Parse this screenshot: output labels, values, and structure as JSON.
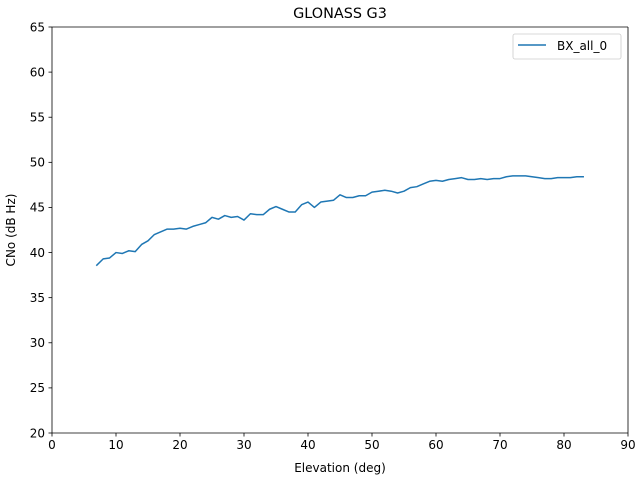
{
  "chart_data": {
    "type": "line",
    "title": "GLONASS G3",
    "xlabel": "Elevation (deg)",
    "ylabel": "CNo (dB Hz)",
    "xlim": [
      0,
      90
    ],
    "ylim": [
      20,
      65
    ],
    "xticks": [
      0,
      10,
      20,
      30,
      40,
      50,
      60,
      70,
      80,
      90
    ],
    "yticks": [
      20,
      25,
      30,
      35,
      40,
      45,
      50,
      55,
      60,
      65
    ],
    "grid": false,
    "legend_position": "top-right",
    "series": [
      {
        "name": "BX_all_0",
        "color": "#1f77b4",
        "x": [
          7,
          8,
          9,
          10,
          11,
          12,
          13,
          14,
          15,
          16,
          17,
          18,
          19,
          20,
          21,
          22,
          23,
          24,
          25,
          26,
          27,
          28,
          29,
          30,
          31,
          32,
          33,
          34,
          35,
          36,
          37,
          38,
          39,
          40,
          41,
          42,
          43,
          44,
          45,
          46,
          47,
          48,
          49,
          50,
          51,
          52,
          53,
          54,
          55,
          56,
          57,
          58,
          59,
          60,
          61,
          62,
          63,
          64,
          65,
          66,
          67,
          68,
          69,
          70,
          71,
          72,
          73,
          74,
          75,
          76,
          77,
          78,
          79,
          80,
          81,
          82,
          83
        ],
        "y": [
          38.6,
          39.3,
          39.4,
          40.0,
          39.9,
          40.2,
          40.1,
          40.9,
          41.3,
          42.0,
          42.3,
          42.6,
          42.6,
          42.7,
          42.6,
          42.9,
          43.1,
          43.3,
          43.9,
          43.7,
          44.1,
          43.9,
          44.0,
          43.6,
          44.3,
          44.2,
          44.2,
          44.8,
          45.1,
          44.8,
          44.5,
          44.5,
          45.3,
          45.6,
          45.0,
          45.6,
          45.7,
          45.8,
          46.4,
          46.1,
          46.1,
          46.3,
          46.3,
          46.7,
          46.8,
          46.9,
          46.8,
          46.6,
          46.8,
          47.2,
          47.3,
          47.6,
          47.9,
          48.0,
          47.9,
          48.1,
          48.2,
          48.3,
          48.1,
          48.1,
          48.2,
          48.1,
          48.2,
          48.2,
          48.4,
          48.5,
          48.5,
          48.5,
          48.4,
          48.3,
          48.2,
          48.2,
          48.3,
          48.3,
          48.3,
          48.4,
          48.4
        ]
      }
    ]
  }
}
